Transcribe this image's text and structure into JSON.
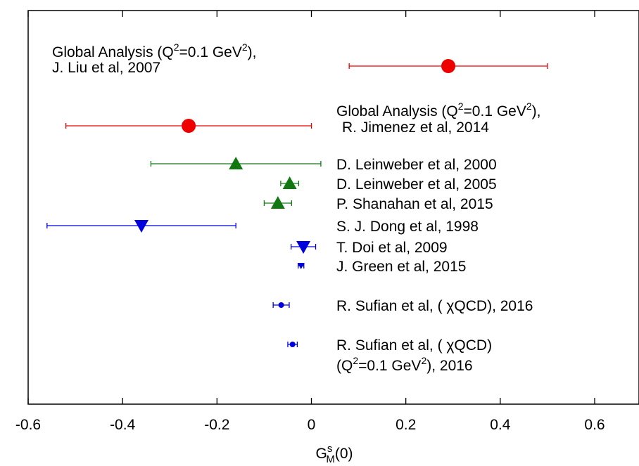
{
  "chart_data": {
    "type": "scatter",
    "title": "",
    "xlabel": {
      "base": "G",
      "sup": "s",
      "sub": "M",
      "tail": "(0)"
    },
    "xlim": [
      -0.6,
      0.68
    ],
    "xticks": [
      "-0.6",
      "-0.4",
      "-0.2",
      "0",
      "0.2",
      "0.4",
      "0.6"
    ],
    "tick_values": [
      -0.6,
      -0.4,
      -0.2,
      0,
      0.2,
      0.4,
      0.6
    ],
    "grid": false,
    "colors": {
      "red": "#ee0000",
      "green": "#117711",
      "blue": "#0000dd"
    },
    "points": [
      {
        "label": [
          "Global Analysis (Q",
          "2",
          "=0.1 GeV",
          "2",
          "),"
        ],
        "label2": "J. Liu et al, 2007",
        "x": 0.29,
        "xerr_low": 0.08,
        "xerr_high": 0.5,
        "row": 1,
        "marker": "circle-large",
        "color": "red",
        "label_side": "left-top"
      },
      {
        "label": [
          "Global Analysis (Q",
          "2",
          "=0.1 GeV",
          "2",
          "),"
        ],
        "label2": "R. Jimenez et al, 2014",
        "x": -0.26,
        "xerr_low": -0.52,
        "xerr_high": 0.0,
        "row": 2,
        "marker": "circle-large",
        "color": "red",
        "label_side": "right"
      },
      {
        "label": "D. Leinweber et al, 2000",
        "x": -0.16,
        "xerr_low": -0.34,
        "xerr_high": 0.02,
        "row": 3,
        "marker": "triangle-up",
        "color": "green"
      },
      {
        "label": "D. Leinweber et al, 2005",
        "x": -0.046,
        "xerr_low": -0.065,
        "xerr_high": -0.027,
        "row": 4,
        "marker": "triangle-up",
        "color": "green"
      },
      {
        "label": "P. Shanahan et al, 2015",
        "x": -0.071,
        "xerr_low": -0.1,
        "xerr_high": -0.042,
        "row": 5,
        "marker": "triangle-up",
        "color": "green"
      },
      {
        "label": "S. J. Dong et al, 1998",
        "x": -0.36,
        "xerr_low": -0.56,
        "xerr_high": -0.16,
        "row": 6,
        "marker": "triangle-down",
        "color": "blue"
      },
      {
        "label": "T. Doi et al, 2009",
        "x": -0.017,
        "xerr_low": -0.043,
        "xerr_high": 0.009,
        "row": 7,
        "marker": "triangle-down",
        "color": "blue"
      },
      {
        "label": "J. Green et al, 2015",
        "x": -0.022,
        "xerr_low": -0.028,
        "xerr_high": -0.016,
        "row": 8,
        "marker": "triangle-down-small",
        "color": "blue"
      },
      {
        "label": "R. Sufian et al, ( χQCD), 2016",
        "x": -0.064,
        "xerr_low": -0.081,
        "xerr_high": -0.047,
        "row": 9,
        "marker": "circle-small",
        "color": "blue"
      },
      {
        "label": "R. Sufian et al, ( χQCD)",
        "label3": [
          "(Q",
          "2",
          "=0.1 GeV",
          "2",
          "), 2016"
        ],
        "x": -0.04,
        "xerr_low": -0.05,
        "xerr_high": -0.03,
        "row": 10,
        "marker": "circle-small",
        "color": "blue"
      }
    ]
  }
}
